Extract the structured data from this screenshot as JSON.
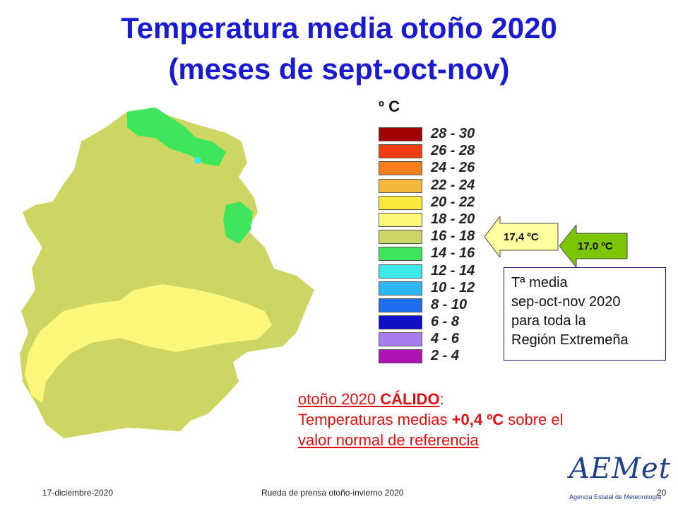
{
  "title": {
    "line1": "Temperatura media otoño 2020",
    "line2": "(meses de sept-oct-nov)"
  },
  "legend": {
    "unit": "º C",
    "items": [
      {
        "label": "28 - 30",
        "color": "#a00000"
      },
      {
        "label": "26 - 28",
        "color": "#f03c10"
      },
      {
        "label": "24 - 26",
        "color": "#f57d1c"
      },
      {
        "label": "22 - 24",
        "color": "#f5b83c"
      },
      {
        "label": "20 - 22",
        "color": "#fbe83a"
      },
      {
        "label": "18 - 20",
        "color": "#fbf77a"
      },
      {
        "label": "16 - 18",
        "color": "#cdd663"
      },
      {
        "label": "14 - 16",
        "color": "#3fe55a"
      },
      {
        "label": "12 - 14",
        "color": "#3fe8ea"
      },
      {
        "label": "10 - 12",
        "color": "#2fb6f4"
      },
      {
        "label": "8 - 10",
        "color": "#1e6ff0"
      },
      {
        "label": "6 - 8",
        "color": "#1010c8"
      },
      {
        "label": "4 - 6",
        "color": "#a67cf0"
      },
      {
        "label": "2 - 4",
        "color": "#b012b8"
      }
    ]
  },
  "callouts": {
    "region_value": "17,4 ºC",
    "normal_value": "17.0 ºC",
    "region_arrow_color": "#ffffa0",
    "normal_arrow_color": "#7cc500"
  },
  "info_box": {
    "lines": [
      "Tª media",
      "sep-oct-nov 2020",
      "para toda la",
      "Región Extremeña"
    ]
  },
  "summary": {
    "line1_prefix": "otoño 2020 ",
    "line1_bold": "CÁLIDO",
    "line1_suffix": ":",
    "line2_prefix": "Temperaturas medias ",
    "line2_bold": "+0,4 ºC",
    "line2_suffix": " sobre el",
    "line3": "valor normal de referencia"
  },
  "map_colors": {
    "dominant": "#cdd663",
    "warm_zone": "#fbf77a",
    "cool_zone": "#3fe55a",
    "cold_spot": "#3fe8ea"
  },
  "footer": {
    "date": "17-diciembre-2020",
    "event": "Rueda de prensa otoño-invierno 2020",
    "page": "20",
    "logo_text": "AEMet",
    "logo_sub": "Agencia Estatal de Meteorología"
  }
}
